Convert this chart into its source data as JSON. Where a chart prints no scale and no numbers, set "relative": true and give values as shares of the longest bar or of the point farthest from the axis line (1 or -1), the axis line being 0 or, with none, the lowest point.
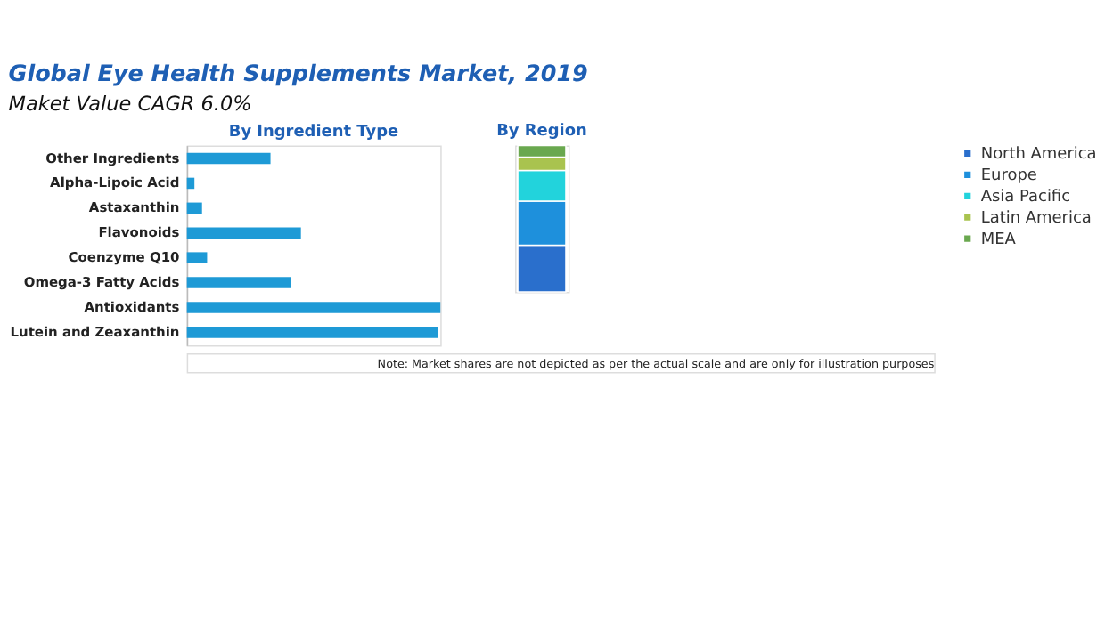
{
  "chart_data": [
    {
      "type": "bar",
      "title": "Global Eye Health Supplements Market, 2019",
      "subtitle": "Maket Value CAGR 6.0%",
      "orientation": "horizontal",
      "relative": true,
      "annotations": [
        "By Ingredient Type"
      ],
      "categories": [
        "Other Ingredients",
        "Alpha-Lipoic Acid",
        "Astaxanthin",
        "Flavonoids",
        "Coenzyme Q10",
        "Omega-3 Fatty Acids",
        "Antioxidants",
        "Lutein and Zeaxanthin"
      ],
      "values": [
        0.33,
        0.03,
        0.06,
        0.45,
        0.08,
        0.41,
        1.0,
        0.99
      ],
      "color": "#1e9ad6"
    },
    {
      "type": "bar",
      "title": "By Region",
      "stacked": true,
      "relative": true,
      "legend": "right",
      "annotations": [
        "Note: Market shares are not depicted as per the actual scale and are only for illustration purposes"
      ],
      "categories": [
        null
      ],
      "series": [
        {
          "name": "North America",
          "color": "#2a6fcc",
          "values": [
            0.32
          ]
        },
        {
          "name": "Europe",
          "color": "#1e90dc",
          "values": [
            0.3
          ]
        },
        {
          "name": "Asia Pacific",
          "color": "#22d3dc",
          "values": [
            0.21
          ]
        },
        {
          "name": "Latin America",
          "color": "#a9c34f",
          "values": [
            0.09
          ]
        },
        {
          "name": "MEA",
          "color": "#6aa84f",
          "values": [
            0.08
          ]
        }
      ]
    }
  ]
}
